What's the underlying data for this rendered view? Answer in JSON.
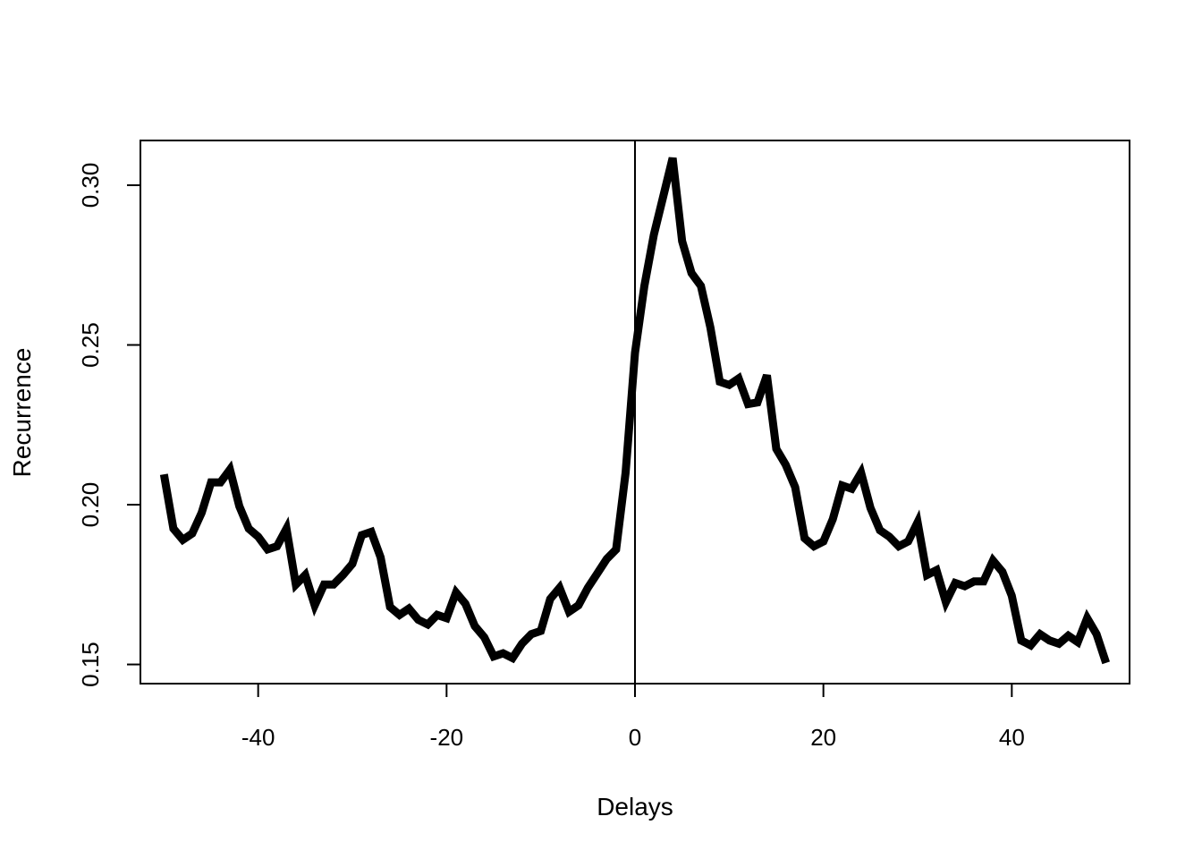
{
  "chart_data": {
    "type": "line",
    "title": "",
    "xlabel": "Delays",
    "ylabel": "Recurrence",
    "xlim": [
      -52.5,
      52.5
    ],
    "ylim": [
      0.144,
      0.314
    ],
    "xticks": [
      -40,
      -20,
      0,
      20,
      40
    ],
    "xtick_labels": [
      "-40",
      "-20",
      "0",
      "20",
      "40"
    ],
    "yticks": [
      0.15,
      0.2,
      0.25,
      0.3
    ],
    "ytick_labels": [
      "0.15",
      "0.20",
      "0.25",
      "0.30"
    ],
    "grid": false,
    "legend": "none",
    "reference_line_x": 0,
    "line_color": "#000000",
    "series": [
      {
        "x": [
          -50,
          -49,
          -48,
          -47,
          -46,
          -45,
          -44,
          -43,
          -42,
          -41,
          -40,
          -39,
          -38,
          -37,
          -36,
          -35,
          -34,
          -33,
          -32,
          -31,
          -30,
          -29,
          -28,
          -27,
          -26,
          -25,
          -24,
          -23,
          -22,
          -21,
          -20,
          -19,
          -18,
          -17,
          -16,
          -15,
          -14,
          -13,
          -12,
          -11,
          -10,
          -9,
          -8,
          -7,
          -6,
          -5,
          -4,
          -3,
          -2,
          -1,
          0,
          1,
          2,
          3,
          4,
          5,
          6,
          7,
          8,
          9,
          10,
          11,
          12,
          13,
          14,
          15,
          16,
          17,
          18,
          19,
          20,
          21,
          22,
          23,
          24,
          25,
          26,
          27,
          28,
          29,
          30,
          31,
          32,
          33,
          34,
          35,
          36,
          37,
          38,
          39,
          40,
          41,
          42,
          43,
          44,
          45,
          46,
          47,
          48,
          49,
          50
        ],
        "y": [
          0.2095,
          0.1925,
          0.189,
          0.191,
          0.1975,
          0.207,
          0.207,
          0.211,
          0.1995,
          0.1925,
          0.19,
          0.186,
          0.187,
          0.1925,
          0.175,
          0.178,
          0.1685,
          0.175,
          0.175,
          0.178,
          0.1815,
          0.1905,
          0.1915,
          0.1835,
          0.168,
          0.1655,
          0.1675,
          0.164,
          0.1625,
          0.1655,
          0.1645,
          0.1725,
          0.169,
          0.162,
          0.1585,
          0.1525,
          0.1535,
          0.152,
          0.1565,
          0.1595,
          0.1605,
          0.1705,
          0.174,
          0.1665,
          0.1685,
          0.174,
          0.1785,
          0.183,
          0.186,
          0.21,
          0.2475,
          0.2685,
          0.2845,
          0.2965,
          0.3085,
          0.2825,
          0.2725,
          0.2685,
          0.2555,
          0.2385,
          0.2375,
          0.2395,
          0.2315,
          0.232,
          0.2405,
          0.2175,
          0.2125,
          0.2055,
          0.1895,
          0.187,
          0.1885,
          0.1955,
          0.206,
          0.205,
          0.21,
          0.199,
          0.192,
          0.19,
          0.187,
          0.1885,
          0.1945,
          0.178,
          0.1795,
          0.1695,
          0.1755,
          0.1745,
          0.176,
          0.176,
          0.1825,
          0.179,
          0.1715,
          0.1575,
          0.156,
          0.1595,
          0.1575,
          0.1565,
          0.159,
          0.157,
          0.1645,
          0.1595,
          0.1505
        ]
      }
    ]
  }
}
